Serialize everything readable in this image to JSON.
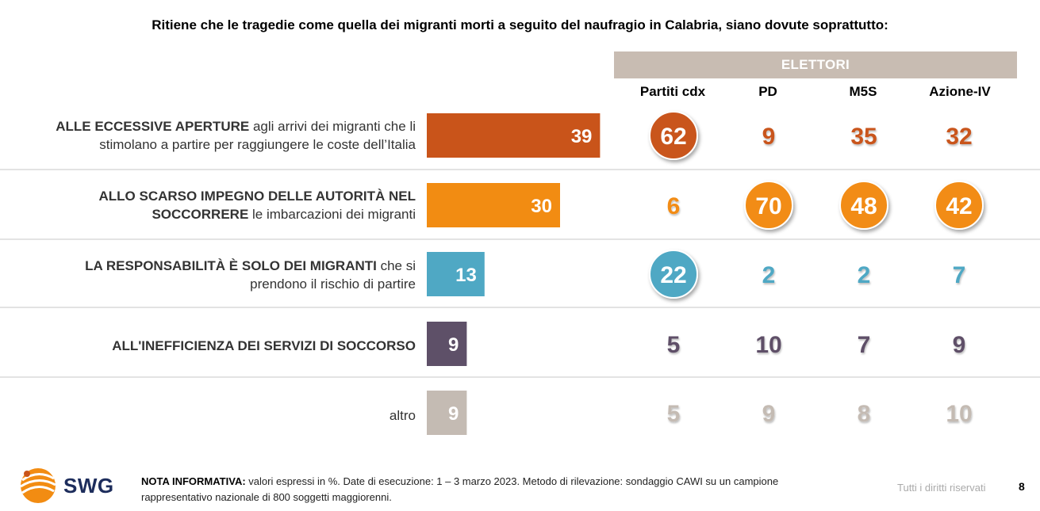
{
  "title": "Ritiene che le tragedie come quella dei migranti morti a seguito del naufragio in Calabria, siano dovute soprattutto:",
  "group_header": "ELETTORI",
  "rows": [
    {
      "label_bold": "ALLE ECCESSIVE APERTURE",
      "label_rest_1": " agli arrivi dei migranti che li",
      "label_line2": "stimolano a partire per raggiungere le coste dell’Italia"
    },
    {
      "label_bold": "ALLO SCARSO IMPEGNO DELLE AUTORITÀ NEL",
      "label_line2_bold": "SOCCORRERE",
      "label_line2_rest": " le imbarcazioni dei migranti"
    },
    {
      "label_bold": "LA RESPONSABILITÀ È SOLO DEI MIGRANTI",
      "label_rest_1": " che si",
      "label_line2": "prendono il rischio di partire"
    },
    {
      "label_bold": "ALL'INEFFICIENZA DEI SERVIZI DI SOCCORSO"
    },
    {
      "label_plain": "altro"
    }
  ],
  "chart_data": {
    "type": "bar",
    "categories": [
      "ALLE ECCESSIVE APERTURE agli arrivi dei migranti che li stimolano a partire per raggiungere le coste dell’Italia",
      "ALLO SCARSO IMPEGNO DELLE AUTORITÀ NEL SOCCORRERE le imbarcazioni dei migranti",
      "LA RESPONSABILITÀ È SOLO DEI MIGRANTI che si prendono il rischio di partire",
      "ALL'INEFFICIENZA DEI SERVIZI DI SOCCORSO",
      "altro"
    ],
    "values": [
      39,
      30,
      13,
      9,
      9
    ],
    "colors": [
      "#c9541a",
      "#f28c12",
      "#4fa8c4",
      "#5e5068",
      "#c4bbb3"
    ],
    "unit": "%",
    "table": {
      "group_header": "ELETTORI",
      "columns": [
        "Partiti cdx",
        "PD",
        "M5S",
        "Azione-IV"
      ],
      "values": [
        [
          62,
          9,
          35,
          32
        ],
        [
          6,
          70,
          48,
          42
        ],
        [
          22,
          2,
          2,
          7
        ],
        [
          5,
          10,
          7,
          9
        ],
        [
          5,
          9,
          8,
          10
        ]
      ],
      "highlighted": [
        [
          true,
          false,
          false,
          false
        ],
        [
          false,
          true,
          true,
          true
        ],
        [
          true,
          false,
          false,
          false
        ],
        [
          false,
          false,
          false,
          false
        ],
        [
          false,
          false,
          false,
          false
        ]
      ]
    }
  },
  "footer": {
    "note_bold": "NOTA INFORMATIVA:",
    "note_text": " valori espressi in %. Date di esecuzione: 1 – 3 marzo 2023. Metodo di rilevazione: sondaggio CAWI su un campione rappresentativo nazionale di 800 soggetti maggiorenni.",
    "rights": "Tutti i diritti riservati",
    "page": "8",
    "logo_text": "SWG"
  }
}
